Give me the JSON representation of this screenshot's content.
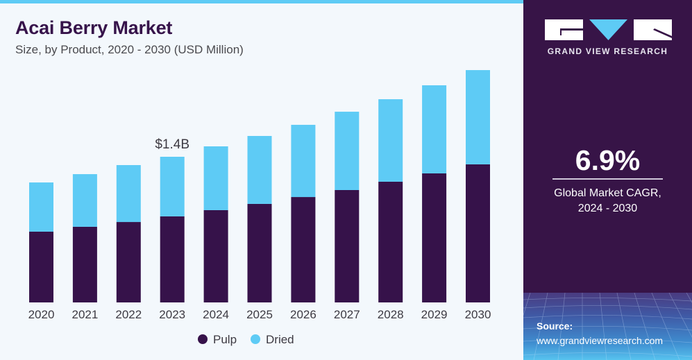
{
  "header": {
    "title": "Acai Berry Market",
    "subtitle": "Size, by Product, 2020 - 2030 (USD Million)"
  },
  "panel": {
    "brand": "GRAND VIEW RESEARCH",
    "cagr_value": "6.9%",
    "cagr_label_line1": "Global Market CAGR,",
    "cagr_label_line2": "2024 - 2030",
    "source_label": "Source:",
    "source_url": "www.grandviewresearch.com"
  },
  "colors": {
    "pulp": "#36124a",
    "dried": "#5ecbf5",
    "panel_bg": "#371447",
    "accent": "#5ecbf5"
  },
  "chart_data": {
    "type": "bar",
    "stacked": true,
    "title": "Acai Berry Market",
    "subtitle": "Size, by Product, 2020 - 2030 (USD Million)",
    "xlabel": "",
    "ylabel": "",
    "categories": [
      "2020",
      "2021",
      "2022",
      "2023",
      "2024",
      "2025",
      "2026",
      "2027",
      "2028",
      "2029",
      "2030"
    ],
    "series": [
      {
        "name": "Pulp",
        "color": "#36124a",
        "values": [
          680,
          727,
          773,
          827,
          887,
          947,
          1013,
          1080,
          1160,
          1240,
          1327
        ]
      },
      {
        "name": "Dried",
        "color": "#5ecbf5",
        "values": [
          473,
          506,
          547,
          573,
          613,
          653,
          694,
          753,
          793,
          847,
          906
        ]
      }
    ],
    "ylim": [
      0,
      2300
    ],
    "grid": false,
    "y_axis_visible": false,
    "legend": {
      "position": "bottom-center",
      "entries": [
        "Pulp",
        "Dried"
      ]
    },
    "annotations": [
      {
        "category": "2023",
        "text": "$1.4B"
      }
    ]
  }
}
